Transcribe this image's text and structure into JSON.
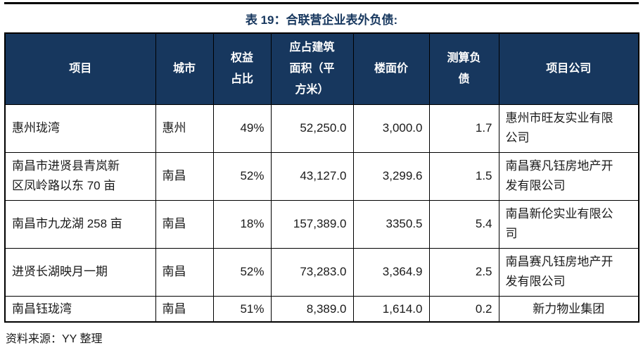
{
  "title": "表 19：合联营企业表外负债:",
  "source": "资料来源：YY 整理",
  "colors": {
    "header_bg": "#17375E",
    "title": "#17375E",
    "border": "#000000",
    "header_text": "#FFFFFF"
  },
  "table": {
    "columns": [
      {
        "key": "project",
        "label": "项目"
      },
      {
        "key": "city",
        "label": "城市"
      },
      {
        "key": "equity",
        "label": "权益\n占比"
      },
      {
        "key": "area",
        "label": "应占建筑\n面积（平\n方米）"
      },
      {
        "key": "price",
        "label": "楼面价"
      },
      {
        "key": "liability",
        "label": "测算负\n债"
      },
      {
        "key": "company",
        "label": "项目公司"
      }
    ],
    "rows": [
      {
        "project": "惠州珑湾",
        "city": "惠州",
        "equity": "49%",
        "area": "52,250.0",
        "price": "3,000.0",
        "liability": "1.7",
        "company": "惠州市旺友实业有限\n公司"
      },
      {
        "project": "南昌市进贤县青岚新\n区凤岭路以东 70 亩",
        "city": "南昌",
        "equity": "52%",
        "area": "43,127.0",
        "price": "3,299.6",
        "liability": "1.5",
        "company": "南昌赛凡钰房地产开\n发有限公司"
      },
      {
        "project": "南昌市九龙湖 258 亩",
        "city": "南昌",
        "equity": "18%",
        "area": "157,389.0",
        "price": "3350.5",
        "liability": "5.4",
        "company": "南昌新伦实业有限公\n司"
      },
      {
        "project": "进贤长湖映月一期",
        "city": "南昌",
        "equity": "52%",
        "area": "73,283.0",
        "price": "3,364.9",
        "liability": "2.5",
        "company": "南昌赛凡钰房地产开\n发有限公司"
      },
      {
        "project": "南昌钰珑湾",
        "city": "南昌",
        "equity": "51%",
        "area": "8,389.0",
        "price": "1,614.0",
        "liability": "0.2",
        "company": "新力物业集团"
      }
    ]
  }
}
